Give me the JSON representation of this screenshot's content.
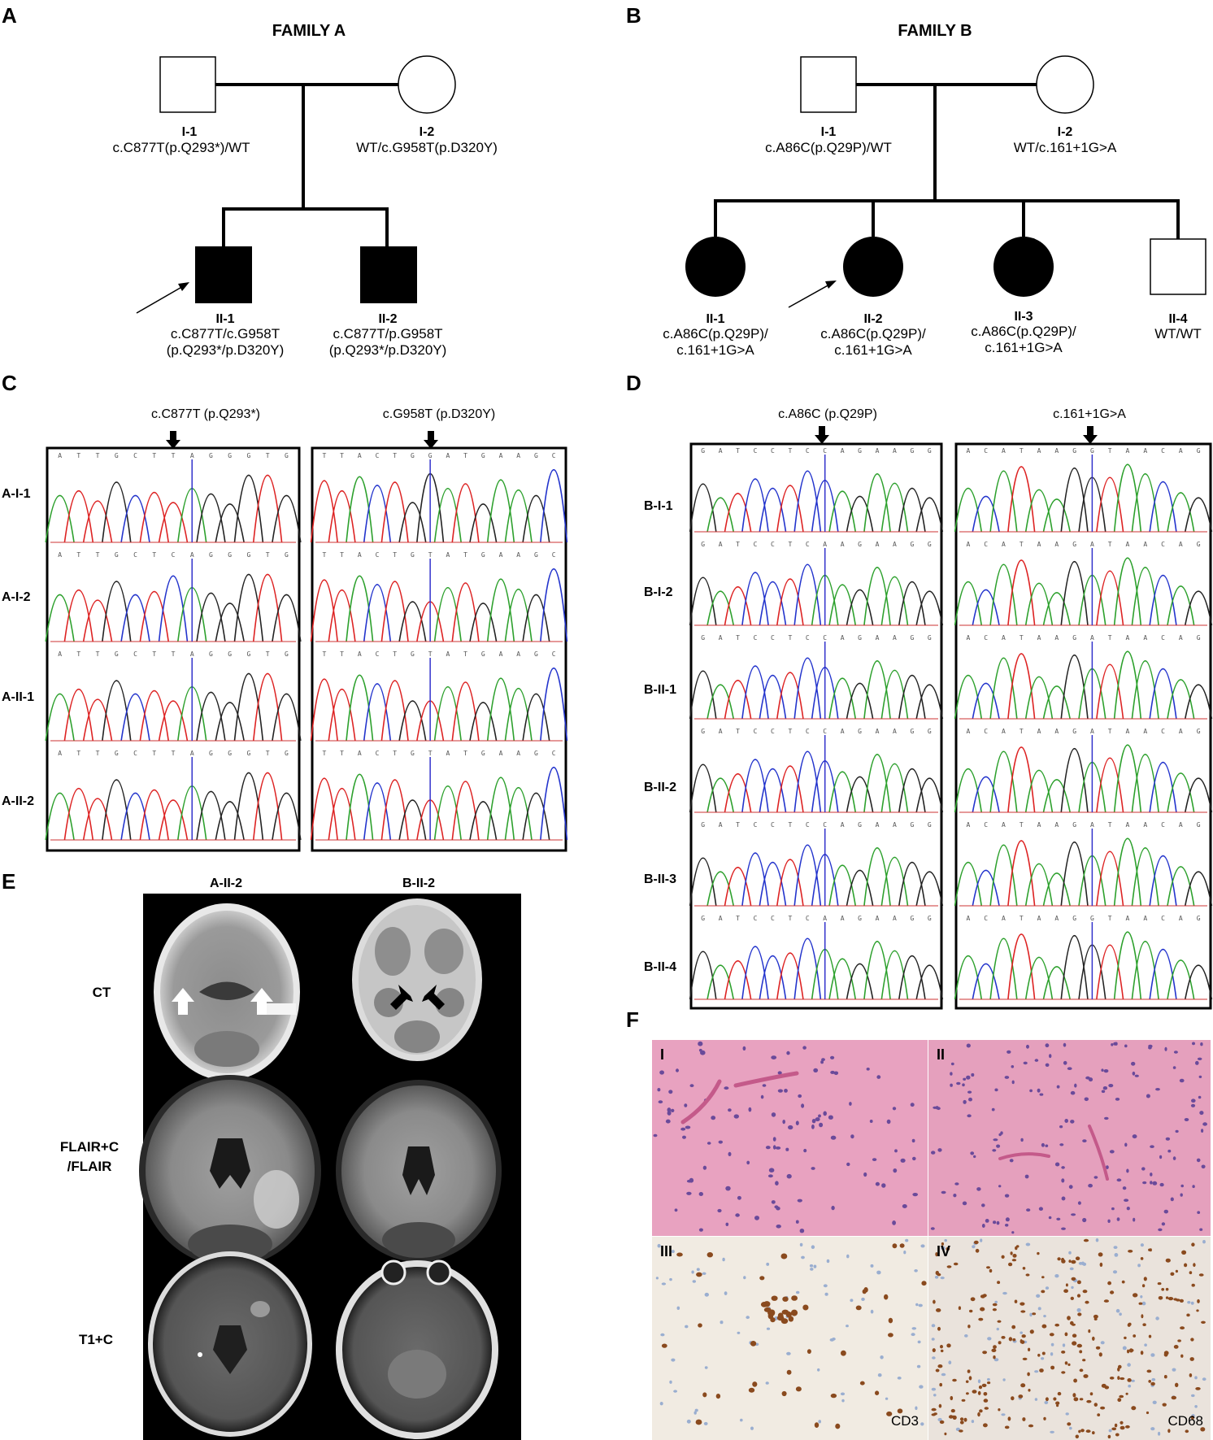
{
  "panels": {
    "A": {
      "letter": "A",
      "title": "FAMILY A",
      "members": [
        {
          "id": "I-1",
          "geno1": "c.C877T(p.Q293*)/WT",
          "geno2": ""
        },
        {
          "id": "I-2",
          "geno1": "WT/c.G958T(p.D320Y)",
          "geno2": ""
        },
        {
          "id": "II-1",
          "geno1": "c.C877T/c.G958T",
          "geno2": "(p.Q293*/p.D320Y)"
        },
        {
          "id": "II-2",
          "geno1": "c.C877T/p.G958T",
          "geno2": "(p.Q293*/p.D320Y)"
        }
      ]
    },
    "B": {
      "letter": "B",
      "title": "FAMILY B",
      "members": [
        {
          "id": "I-1",
          "geno1": "c.A86C(p.Q29P)/WT",
          "geno2": ""
        },
        {
          "id": "I-2",
          "geno1": "WT/c.161+1G>A",
          "geno2": ""
        },
        {
          "id": "II-1",
          "geno1": "c.A86C(p.Q29P)/",
          "geno2": "c.161+1G>A"
        },
        {
          "id": "II-2",
          "geno1": "c.A86C(p.Q29P)/",
          "geno2": "c.161+1G>A"
        },
        {
          "id": "II-3",
          "geno1": "c.A86C(p.Q29P)/",
          "geno2": "c.161+1G>A"
        },
        {
          "id": "II-4",
          "geno1": "WT/WT",
          "geno2": ""
        }
      ]
    },
    "C": {
      "letter": "C",
      "variants": [
        "c.C877T (p.Q293*)",
        "c.G958T (p.D320Y)"
      ],
      "rows": [
        "A-I-1",
        "A-I-2",
        "A-II-1",
        "A-II-2"
      ],
      "seq_left": [
        "ATTGCTTAGGGTG",
        "ATTGCTCAGGGTG",
        "ATTGCTTAGGGTG",
        "ATTGCTTAGGGTG"
      ],
      "seq_right": [
        "TTACTGGATGAAGC",
        "TTACTGTATGAAGC",
        "TTACTGTATGAAGC",
        "TTACTGTATGAAGC"
      ]
    },
    "D": {
      "letter": "D",
      "variants": [
        "c.A86C (p.Q29P)",
        "c.161+1G>A"
      ],
      "rows": [
        "B-I-1",
        "B-I-2",
        "B-II-1",
        "B-II-2",
        "B-II-3",
        "B-II-4"
      ],
      "seq_left": [
        "GATCCTCCAGAAGG",
        "GATCCTCAAGAAGG",
        "GATCCTCCAGAAGG",
        "GATCCTCCAGAAGG",
        "GATCCTCCAGAAGG",
        "GATCCTCAAGAAGG"
      ],
      "seq_right": [
        "ACATAAGGTAACAG",
        "ACATAAGATAACAG",
        "ACATAAGATAACAG",
        "ACATAAGATAACAG",
        "ACATAAGATAACAG",
        "ACATAAGGTAACAG"
      ]
    },
    "E": {
      "letter": "E",
      "columns": [
        "A-II-2",
        "B-II-2"
      ],
      "rows": [
        "CT",
        "FLAIR+C",
        "/FLAIR",
        "T1+C"
      ]
    },
    "F": {
      "letter": "F",
      "quadrants": [
        "I",
        "II",
        "III",
        "IV"
      ],
      "stains": [
        "CD3",
        "CD68"
      ]
    }
  },
  "colors": {
    "trace_A": "#2ca02c",
    "trace_C": "#2233cc",
    "trace_G": "#222222",
    "trace_T": "#dd2222",
    "marker_line": "#3333cc",
    "he_stain": "#e8a2c0",
    "ihc_bg": "#f1ebe2",
    "ihc_dab": "#8a4a1e"
  }
}
